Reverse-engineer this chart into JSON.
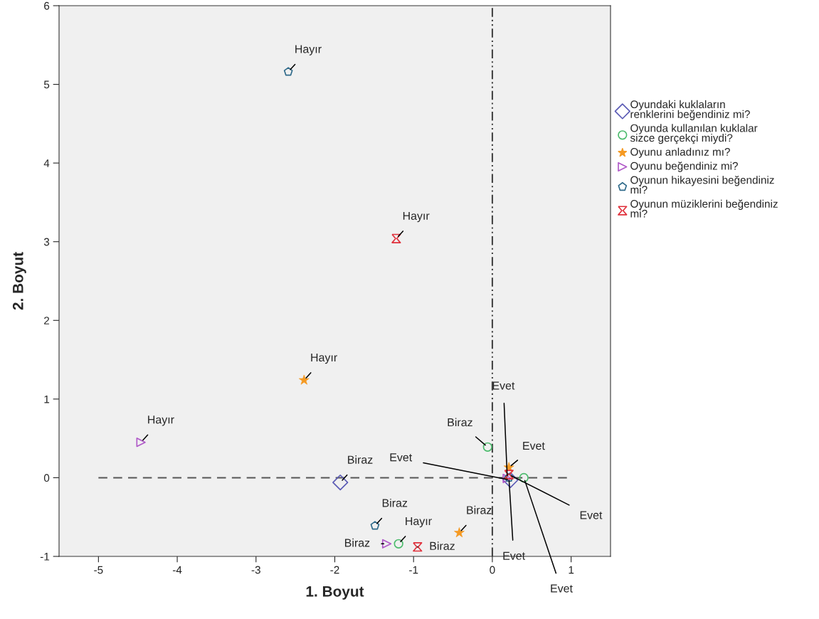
{
  "chart_data": {
    "type": "scatter",
    "xlabel": "1. Boyut",
    "ylabel": "2. Boyut",
    "xlim": [
      -5.5,
      1.5
    ],
    "xticks": [
      -5,
      -4,
      -3,
      -2,
      -1,
      0,
      1
    ],
    "ylim": [
      -1,
      6
    ],
    "yticks": [
      -1,
      0,
      1,
      2,
      3,
      4,
      5,
      6
    ],
    "grid": false,
    "legend": "right",
    "ref_lines": [
      {
        "axis": "x",
        "value": 0,
        "line_style": "dashdot",
        "color": "#444444"
      },
      {
        "axis": "y",
        "value": 0,
        "line_style": "dashed",
        "color": "#555555"
      }
    ],
    "series": [
      {
        "name": "Oyundaki kuklaların renklerini beğendiniz mi?",
        "color": "#5b5bb5",
        "marker": "diamond",
        "x": [
          -1.93,
          0.23
        ],
        "values": [
          -0.06,
          -0.03
        ],
        "value_labels": [
          "Biraz",
          "Evet"
        ]
      },
      {
        "name": "Oyunda kullanılan kuklalar sizce gerçekçi miydi?",
        "color": "#4cbb6c",
        "marker": "circle",
        "x": [
          -0.06,
          0.4,
          -1.19
        ],
        "values": [
          0.39,
          0.0,
          -0.84
        ],
        "value_labels": [
          "Biraz",
          "Evet",
          "Hayır"
        ]
      },
      {
        "name": "Oyunu anladınız mı?",
        "color": "#f59a23",
        "marker": "star",
        "x": [
          -2.39,
          -0.42,
          0.21
        ],
        "values": [
          1.24,
          -0.7,
          0.13
        ],
        "value_labels": [
          "Hayır",
          "Biraz",
          "Evet"
        ]
      },
      {
        "name": "Oyunu beğendiniz mi?",
        "color": "#b05ac8",
        "marker": "triangle",
        "x": [
          -4.46,
          -1.34,
          0.19
        ],
        "values": [
          0.45,
          -0.84,
          -0.01
        ],
        "value_labels": [
          "Hayır",
          "Biraz",
          "Evet"
        ]
      },
      {
        "name": "Oyunun hikayesini beğendiniz mi?",
        "color": "#2f6a8a",
        "x": [
          -2.59,
          -1.49,
          0.21
        ],
        "values": [
          5.16,
          -0.61,
          0.0
        ],
        "value_labels": [
          "Hayır",
          "Biraz",
          "Evet"
        ]
      },
      {
        "name": "Oyunun müziklerini beğendiniz mi?",
        "color": "#e0303b",
        "x": [
          -1.22,
          -0.95,
          0.21
        ],
        "values": [
          3.04,
          -0.88,
          0.04
        ],
        "value_labels": [
          "Hayır",
          "Biraz",
          "Evet"
        ]
      }
    ]
  }
}
